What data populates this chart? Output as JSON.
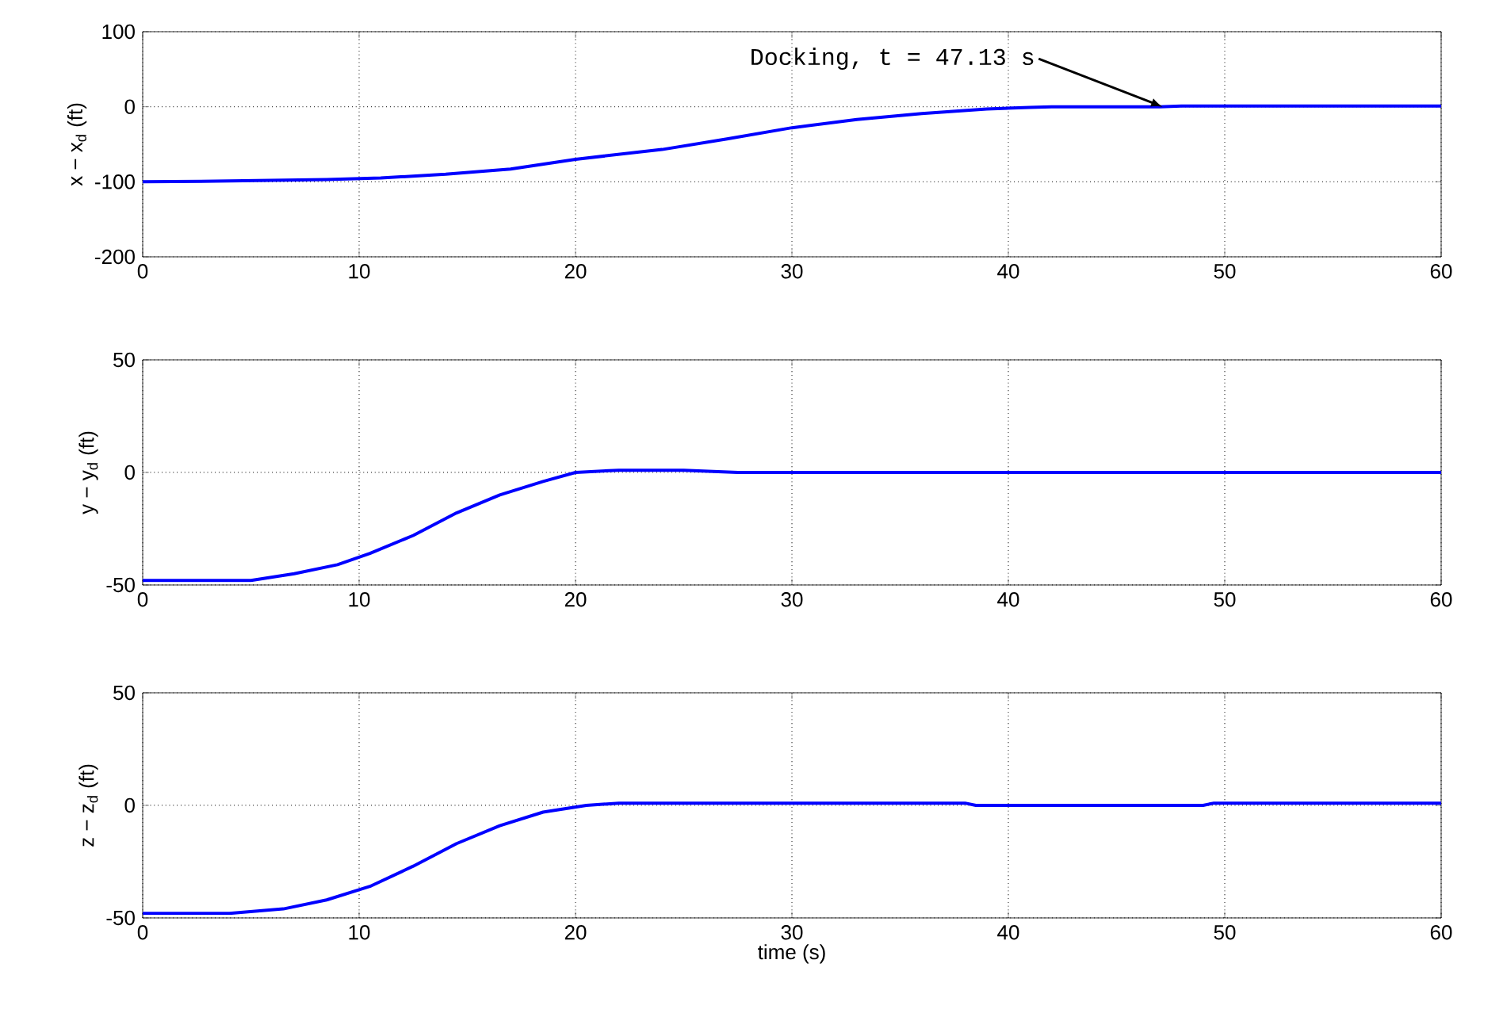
{
  "chart_data": [
    {
      "type": "line",
      "ylabel": "x − x$_{d}$ (ft)",
      "xlim": [
        0,
        60
      ],
      "ylim": [
        -200,
        100
      ],
      "xticks": [
        0,
        10,
        20,
        30,
        40,
        50,
        60
      ],
      "yticks": [
        -200,
        -100,
        0,
        100
      ],
      "grid": true,
      "annotations": [
        {
          "text": "Docking,  t = 47.13 s",
          "x": 47.13,
          "y": 0
        }
      ],
      "series": [
        {
          "color": "#0000ff",
          "x": [
            0,
            4,
            8.5,
            11,
            14,
            17,
            20,
            24,
            27,
            30,
            33,
            36,
            39,
            41,
            42,
            47,
            48,
            60
          ],
          "values": [
            -100,
            -99,
            -97,
            -95,
            -90,
            -83,
            -70,
            -57,
            -43,
            -28,
            -17,
            -9,
            -3,
            -1,
            0,
            0,
            1,
            1
          ]
        }
      ]
    },
    {
      "type": "line",
      "ylabel": "y − y$_{d}$ (ft)",
      "xlim": [
        0,
        60
      ],
      "ylim": [
        -50,
        50
      ],
      "xticks": [
        0,
        10,
        20,
        30,
        40,
        50,
        60
      ],
      "yticks": [
        -50,
        0,
        50
      ],
      "grid": true,
      "series": [
        {
          "color": "#0000ff",
          "x": [
            0,
            5,
            7,
            9,
            10.5,
            12.5,
            14.5,
            16.5,
            18.5,
            20,
            22,
            25,
            27.5,
            60
          ],
          "values": [
            -48,
            -48,
            -45,
            -41,
            -36,
            -28,
            -18,
            -10,
            -4,
            0,
            1,
            1,
            0,
            0
          ]
        }
      ]
    },
    {
      "type": "line",
      "ylabel": "z − z$_{d}$ (ft)",
      "xlabel": "time (s)",
      "xlim": [
        0,
        60
      ],
      "ylim": [
        -50,
        50
      ],
      "xticks": [
        0,
        10,
        20,
        30,
        40,
        50,
        60
      ],
      "yticks": [
        -50,
        0,
        50
      ],
      "grid": true,
      "series": [
        {
          "color": "#0000ff",
          "x": [
            0,
            4,
            6.5,
            8.5,
            10.5,
            12.5,
            14.5,
            16.5,
            18.5,
            20.5,
            22,
            38,
            38.5,
            49,
            49.5,
            60
          ],
          "values": [
            -48,
            -48,
            -46,
            -42,
            -36,
            -27,
            -17,
            -9,
            -3,
            0,
            1,
            1,
            0,
            0,
            1,
            1
          ]
        }
      ]
    }
  ]
}
